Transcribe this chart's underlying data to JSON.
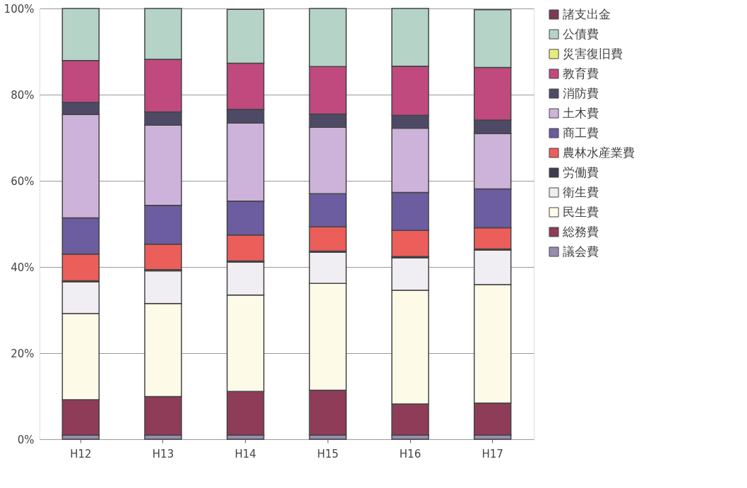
{
  "chart_data": {
    "type": "bar",
    "stacked": true,
    "categories": [
      "H12",
      "H13",
      "H14",
      "H15",
      "H16",
      "H17"
    ],
    "series": [
      {
        "name": "議会費",
        "color": "#9a8cb0",
        "values": [
          1.0,
          1.0,
          1.0,
          1.0,
          1.0,
          1.0
        ]
      },
      {
        "name": "総務費",
        "color": "#8e3c58",
        "values": [
          8.2,
          8.9,
          10.1,
          10.4,
          7.2,
          7.4
        ]
      },
      {
        "name": "民生費",
        "color": "#fdfbe8",
        "values": [
          20.0,
          21.6,
          22.4,
          24.8,
          26.4,
          27.5
        ]
      },
      {
        "name": "衛生費",
        "color": "#f0eef2",
        "values": [
          7.3,
          7.6,
          7.6,
          7.2,
          7.5,
          8.0
        ]
      },
      {
        "name": "労働費",
        "color": "#3c3c4a",
        "values": [
          0.3,
          0.3,
          0.3,
          0.3,
          0.3,
          0.3
        ]
      },
      {
        "name": "農林水産業費",
        "color": "#ec5e5a",
        "values": [
          6.2,
          5.9,
          6.0,
          5.6,
          6.1,
          4.9
        ]
      },
      {
        "name": "商工費",
        "color": "#6c5ca0",
        "values": [
          8.4,
          9.0,
          7.9,
          7.7,
          8.8,
          9.0
        ]
      },
      {
        "name": "土木費",
        "color": "#cdb3da",
        "values": [
          24.0,
          18.6,
          18.1,
          15.4,
          14.9,
          12.9
        ]
      },
      {
        "name": "消防費",
        "color": "#4e4a66",
        "values": [
          2.8,
          3.1,
          3.2,
          3.1,
          3.0,
          3.1
        ]
      },
      {
        "name": "教育費",
        "color": "#c04a7e",
        "values": [
          9.7,
          12.2,
          10.7,
          11.0,
          11.4,
          12.2
        ]
      },
      {
        "name": "災害復旧費",
        "color": "#e8ec80",
        "values": [
          null,
          null,
          null,
          null,
          null,
          null
        ]
      },
      {
        "name": "公債費",
        "color": "#b5d3c6",
        "values": [
          12.1,
          11.8,
          12.5,
          13.5,
          13.4,
          13.4
        ]
      },
      {
        "name": "諸支出金",
        "color": "#7a3a55",
        "values": [
          null,
          null,
          null,
          null,
          null,
          null
        ]
      }
    ],
    "ylim": [
      0,
      100
    ],
    "yticks": [
      {
        "value": 0,
        "label": "0%"
      },
      {
        "value": 20,
        "label": "20%"
      },
      {
        "value": 40,
        "label": "40%"
      },
      {
        "value": 60,
        "label": "60%"
      },
      {
        "value": 80,
        "label": "80%"
      },
      {
        "value": 100,
        "label": "100%"
      }
    ],
    "grid": "y",
    "legend": "right"
  }
}
